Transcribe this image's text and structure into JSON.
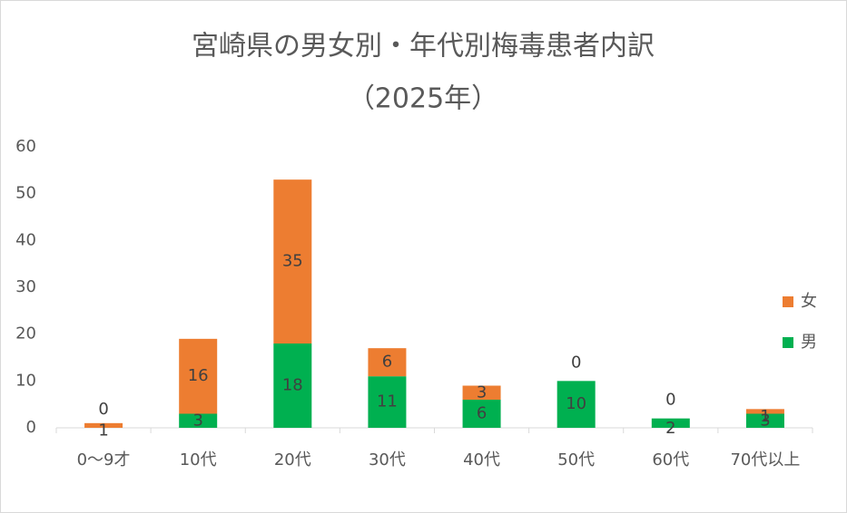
{
  "chart_data": {
    "type": "stacked-bar",
    "title": "宮崎県の男女別・年代別梅毒患者内訳",
    "subtitle": "（2025年）",
    "categories": [
      "0〜9才",
      "10代",
      "20代",
      "30代",
      "40代",
      "50代",
      "60代",
      "70代以上"
    ],
    "series": [
      {
        "name": "男",
        "color": "#00b050",
        "values": [
          0,
          3,
          18,
          11,
          6,
          10,
          2,
          3
        ]
      },
      {
        "name": "女",
        "color": "#ed7d31",
        "values": [
          1,
          16,
          35,
          6,
          3,
          0,
          0,
          1
        ]
      }
    ],
    "ylim": [
      0,
      60
    ],
    "yticks": [
      0,
      10,
      20,
      30,
      40,
      50,
      60
    ],
    "grid": false,
    "legend": "right"
  }
}
